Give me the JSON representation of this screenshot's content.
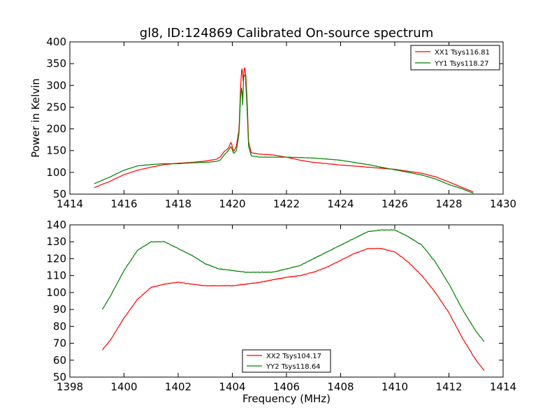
{
  "chart_data": [
    {
      "type": "line",
      "title": "gl8, ID:124869 Calibrated On-source spectrum",
      "ylabel": "Power in Kelvin",
      "xlabel": "",
      "xlim": [
        1414,
        1430
      ],
      "ylim": [
        50,
        400
      ],
      "xticks": [
        1414,
        1416,
        1418,
        1420,
        1422,
        1424,
        1426,
        1428,
        1430
      ],
      "yticks": [
        50,
        100,
        150,
        200,
        250,
        300,
        350,
        400
      ],
      "grid": false,
      "legend_position": "top-right",
      "series": [
        {
          "name": "XX1 Tsys116.81",
          "color": "#ff0000",
          "points": [
            [
              1414.9,
              65
            ],
            [
              1415.5,
              80
            ],
            [
              1416,
              95
            ],
            [
              1416.5,
              105
            ],
            [
              1417,
              112
            ],
            [
              1417.5,
              118
            ],
            [
              1418,
              121
            ],
            [
              1418.5,
              123
            ],
            [
              1419,
              126
            ],
            [
              1419.4,
              130
            ],
            [
              1419.55,
              135
            ],
            [
              1419.7,
              148
            ],
            [
              1419.85,
              155
            ],
            [
              1419.95,
              170
            ],
            [
              1420.05,
              148
            ],
            [
              1420.15,
              160
            ],
            [
              1420.25,
              200
            ],
            [
              1420.3,
              290
            ],
            [
              1420.35,
              345
            ],
            [
              1420.4,
              310
            ],
            [
              1420.45,
              345
            ],
            [
              1420.5,
              320
            ],
            [
              1420.55,
              260
            ],
            [
              1420.6,
              170
            ],
            [
              1420.7,
              145
            ],
            [
              1421,
              142
            ],
            [
              1421.5,
              140
            ],
            [
              1422,
              135
            ],
            [
              1422.5,
              128
            ],
            [
              1423,
              123
            ],
            [
              1424,
              117
            ],
            [
              1425,
              112
            ],
            [
              1426,
              107
            ],
            [
              1427,
              98
            ],
            [
              1427.5,
              90
            ],
            [
              1428,
              78
            ],
            [
              1428.5,
              65
            ],
            [
              1428.9,
              55
            ]
          ]
        },
        {
          "name": "YY1 Tsys118.27",
          "color": "#008000",
          "points": [
            [
              1414.9,
              74
            ],
            [
              1415.5,
              90
            ],
            [
              1416,
              105
            ],
            [
              1416.5,
              115
            ],
            [
              1417,
              118
            ],
            [
              1417.5,
              120
            ],
            [
              1418,
              120
            ],
            [
              1418.5,
              122
            ],
            [
              1419,
              123
            ],
            [
              1419.4,
              125
            ],
            [
              1419.55,
              128
            ],
            [
              1419.7,
              140
            ],
            [
              1419.85,
              150
            ],
            [
              1419.95,
              160
            ],
            [
              1420.05,
              143
            ],
            [
              1420.15,
              150
            ],
            [
              1420.25,
              190
            ],
            [
              1420.3,
              270
            ],
            [
              1420.35,
              300
            ],
            [
              1420.38,
              255
            ],
            [
              1420.42,
              320
            ],
            [
              1420.48,
              325
            ],
            [
              1420.55,
              240
            ],
            [
              1420.6,
              160
            ],
            [
              1420.7,
              138
            ],
            [
              1421,
              135
            ],
            [
              1422,
              135
            ],
            [
              1423,
              133
            ],
            [
              1424,
              128
            ],
            [
              1425,
              118
            ],
            [
              1426,
              106
            ],
            [
              1427,
              94
            ],
            [
              1427.5,
              85
            ],
            [
              1428,
              72
            ],
            [
              1428.5,
              62
            ],
            [
              1428.9,
              52
            ]
          ]
        }
      ]
    },
    {
      "type": "line",
      "title": "",
      "xlabel": "Frequency (MHz)",
      "ylabel": "",
      "xlim": [
        1398,
        1414
      ],
      "ylim": [
        50,
        140
      ],
      "xticks": [
        1398,
        1400,
        1402,
        1404,
        1406,
        1408,
        1410,
        1412,
        1414
      ],
      "yticks": [
        50,
        60,
        70,
        80,
        90,
        100,
        110,
        120,
        130,
        140
      ],
      "grid": false,
      "legend_position": "bottom-center",
      "series": [
        {
          "name": "XX2 Tsys104.17",
          "color": "#ff0000",
          "points": [
            [
              1399.2,
              66
            ],
            [
              1399.5,
              72
            ],
            [
              1400,
              85
            ],
            [
              1400.5,
              96
            ],
            [
              1401,
              103
            ],
            [
              1401.5,
              105
            ],
            [
              1402,
              106
            ],
            [
              1402.5,
              105
            ],
            [
              1403,
              104
            ],
            [
              1403.5,
              104
            ],
            [
              1404,
              104
            ],
            [
              1404.5,
              105
            ],
            [
              1405,
              106
            ],
            [
              1405.5,
              107.5
            ],
            [
              1406,
              109
            ],
            [
              1406.5,
              110
            ],
            [
              1407,
              112
            ],
            [
              1407.5,
              115
            ],
            [
              1408,
              119
            ],
            [
              1408.5,
              123
            ],
            [
              1409,
              126
            ],
            [
              1409.5,
              126
            ],
            [
              1410,
              124
            ],
            [
              1410.5,
              118
            ],
            [
              1411,
              110
            ],
            [
              1411.5,
              100
            ],
            [
              1412,
              88
            ],
            [
              1412.5,
              73
            ],
            [
              1413,
              60
            ],
            [
              1413.3,
              54
            ]
          ]
        },
        {
          "name": "YY2 Tsys118.64",
          "color": "#008000",
          "points": [
            [
              1399.2,
              90
            ],
            [
              1399.5,
              98
            ],
            [
              1400,
              113
            ],
            [
              1400.5,
              125
            ],
            [
              1401,
              130
            ],
            [
              1401.5,
              130
            ],
            [
              1402,
              126
            ],
            [
              1402.5,
              122
            ],
            [
              1403,
              117
            ],
            [
              1403.5,
              114
            ],
            [
              1404,
              113
            ],
            [
              1404.5,
              112
            ],
            [
              1405,
              112
            ],
            [
              1405.5,
              112
            ],
            [
              1406,
              114
            ],
            [
              1406.5,
              116
            ],
            [
              1407,
              120
            ],
            [
              1407.5,
              124
            ],
            [
              1408,
              128
            ],
            [
              1408.5,
              132
            ],
            [
              1409,
              136
            ],
            [
              1409.5,
              137
            ],
            [
              1410,
              137
            ],
            [
              1410.5,
              133
            ],
            [
              1411,
              128
            ],
            [
              1411.5,
              118
            ],
            [
              1412,
              105
            ],
            [
              1412.5,
              90
            ],
            [
              1413,
              77
            ],
            [
              1413.3,
              71
            ]
          ]
        }
      ]
    }
  ]
}
